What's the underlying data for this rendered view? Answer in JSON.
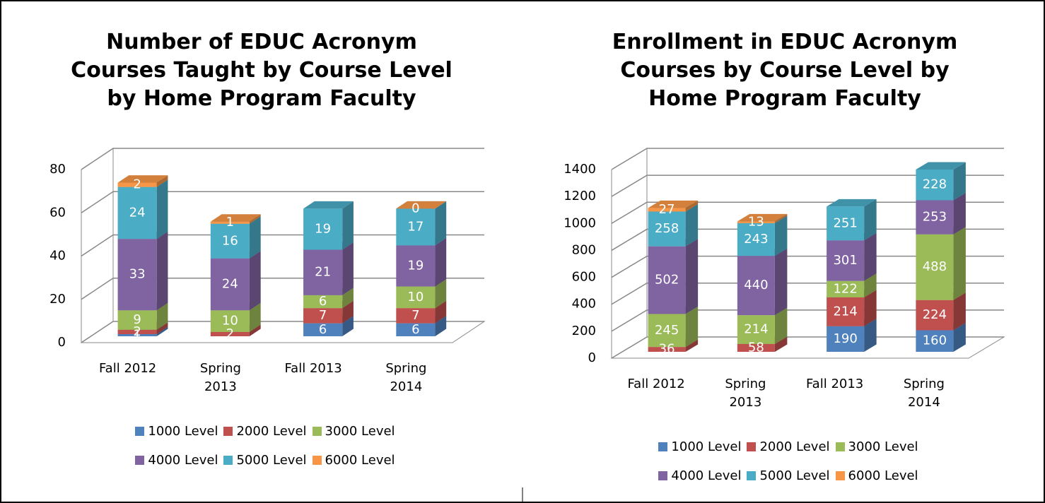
{
  "chart_data": [
    {
      "type": "bar",
      "stacked": true,
      "title": "Number of EDUC Acronym Courses Taught by Course Level by Home Program Faculty",
      "categories": [
        "Fall 2012",
        "Spring 2013",
        "Fall 2013",
        "Spring 2014"
      ],
      "series": [
        {
          "name": "1000 Level",
          "color": "#4f81bd",
          "values": [
            1,
            null,
            6,
            6
          ]
        },
        {
          "name": "2000 Level",
          "color": "#c0504d",
          "values": [
            2,
            2,
            7,
            7
          ]
        },
        {
          "name": "3000 Level",
          "color": "#9bbb59",
          "values": [
            9,
            10,
            6,
            10
          ]
        },
        {
          "name": "4000 Level",
          "color": "#8064a2",
          "values": [
            33,
            24,
            21,
            19
          ]
        },
        {
          "name": "5000 Level",
          "color": "#4bacc6",
          "values": [
            24,
            16,
            19,
            17
          ]
        },
        {
          "name": "6000 Level",
          "color": "#f79646",
          "values": [
            2,
            1,
            null,
            0
          ]
        }
      ],
      "ylim": [
        0,
        80
      ],
      "yticks": [
        0,
        20,
        40,
        60,
        80
      ],
      "grid": true,
      "legend": "bottom"
    },
    {
      "type": "bar",
      "stacked": true,
      "title": "Enrollment in EDUC Acronym Courses by Course Level by Home Program Faculty",
      "categories": [
        "Fall 2012",
        "Spring 2013",
        "Fall 2013",
        "Spring 2014"
      ],
      "series": [
        {
          "name": "1000 Level",
          "color": "#4f81bd",
          "values": [
            null,
            null,
            190,
            160
          ]
        },
        {
          "name": "2000 Level",
          "color": "#c0504d",
          "values": [
            36,
            58,
            214,
            224
          ]
        },
        {
          "name": "3000 Level",
          "color": "#9bbb59",
          "values": [
            245,
            214,
            122,
            488
          ]
        },
        {
          "name": "4000 Level",
          "color": "#8064a2",
          "values": [
            502,
            440,
            301,
            253
          ]
        },
        {
          "name": "5000 Level",
          "color": "#4bacc6",
          "values": [
            258,
            243,
            251,
            228
          ]
        },
        {
          "name": "6000 Level",
          "color": "#f79646",
          "values": [
            27,
            13,
            null,
            null
          ]
        }
      ],
      "ylim": [
        0,
        1400
      ],
      "yticks": [
        0,
        200,
        400,
        600,
        800,
        1000,
        1200,
        1400
      ],
      "grid": true,
      "legend": "bottom"
    }
  ]
}
